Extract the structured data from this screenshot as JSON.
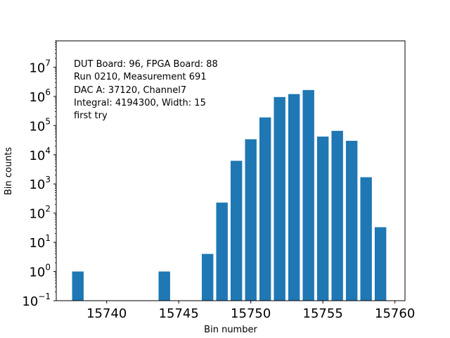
{
  "chart_data": {
    "type": "bar",
    "xlabel": "Bin number",
    "ylabel": "Bin counts",
    "yscale": "log",
    "xlim": [
      15736.5,
      15760.7
    ],
    "ylim": [
      0.1,
      80000000
    ],
    "x": [
      15738,
      15744,
      15747,
      15748,
      15749,
      15750,
      15751,
      15752,
      15753,
      15754,
      15755,
      15756,
      15757,
      15758,
      15759
    ],
    "values": [
      1,
      1,
      4,
      230,
      6200,
      34000,
      190000,
      950000,
      1200000,
      1650000,
      42000,
      66000,
      30000,
      1700,
      33
    ],
    "bar_color": "#1f77b4",
    "x_ticks": [
      15740,
      15745,
      15750,
      15755,
      15760
    ],
    "y_ticks": [
      {
        "value": 0.1,
        "base": "10",
        "exp": "−1"
      },
      {
        "value": 1,
        "base": "10",
        "exp": "0"
      },
      {
        "value": 10,
        "base": "10",
        "exp": "1"
      },
      {
        "value": 100,
        "base": "10",
        "exp": "2"
      },
      {
        "value": 1000,
        "base": "10",
        "exp": "3"
      },
      {
        "value": 10000,
        "base": "10",
        "exp": "4"
      },
      {
        "value": 100000,
        "base": "10",
        "exp": "5"
      },
      {
        "value": 1000000,
        "base": "10",
        "exp": "6"
      },
      {
        "value": 10000000,
        "base": "10",
        "exp": "7"
      }
    ],
    "annotations": [
      "DUT Board: 96, FPGA Board: 88",
      "Run 0210, Measurement 691",
      "DAC A: 37120, Channel7",
      "Integral: 4194300, Width: 15",
      "first try"
    ],
    "grid": false,
    "legend": "none"
  }
}
